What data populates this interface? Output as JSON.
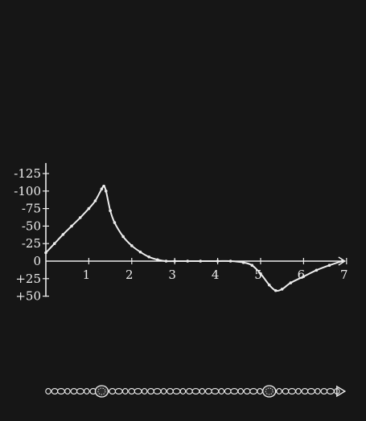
{
  "chart_data": {
    "type": "line",
    "title": "",
    "xlabel": "",
    "ylabel": "",
    "xlim": [
      0,
      7
    ],
    "ylim": [
      -140,
      60
    ],
    "y_inverted": true,
    "grid": false,
    "x_ticks": [
      {
        "value": 1,
        "label": "1"
      },
      {
        "value": 2,
        "label": "2"
      },
      {
        "value": 3,
        "label": "3"
      },
      {
        "value": 4,
        "label": "4"
      },
      {
        "value": 5,
        "label": "5"
      },
      {
        "value": 6,
        "label": "6"
      },
      {
        "value": 7,
        "label": "7"
      }
    ],
    "y_ticks": [
      {
        "value": -125,
        "label": "-125"
      },
      {
        "value": -100,
        "label": "-100"
      },
      {
        "value": -75,
        "label": "-75"
      },
      {
        "value": -50,
        "label": "-50"
      },
      {
        "value": -25,
        "label": "-25"
      },
      {
        "value": 0,
        "label": "0"
      },
      {
        "value": 25,
        "label": "+25"
      },
      {
        "value": 50,
        "label": "+50"
      }
    ],
    "series": [
      {
        "x": [
          0,
          0.2,
          0.4,
          0.6,
          0.8,
          1.0,
          1.15,
          1.3,
          1.35,
          1.4,
          1.5,
          1.6,
          1.8,
          2.0,
          2.2,
          2.4,
          2.6,
          2.8,
          3.0,
          3.3,
          3.6,
          4.0,
          4.3,
          4.6,
          4.8,
          5.0,
          5.2,
          5.35,
          5.5,
          5.7,
          6.0,
          6.3,
          6.6,
          6.9
        ],
        "y": [
          -12,
          -25,
          -38,
          -50,
          -62,
          -75,
          -86,
          -103,
          -107,
          -100,
          -72,
          -55,
          -35,
          -22,
          -13,
          -6,
          -2,
          0,
          0,
          0,
          0,
          0,
          0,
          2,
          6,
          18,
          34,
          42,
          40,
          31,
          22,
          13,
          6,
          0
        ]
      }
    ],
    "bottom_strip": {
      "beads": 46,
      "marked_nodes_x": [
        1.3,
        5.2
      ],
      "end_arrow": true
    }
  }
}
